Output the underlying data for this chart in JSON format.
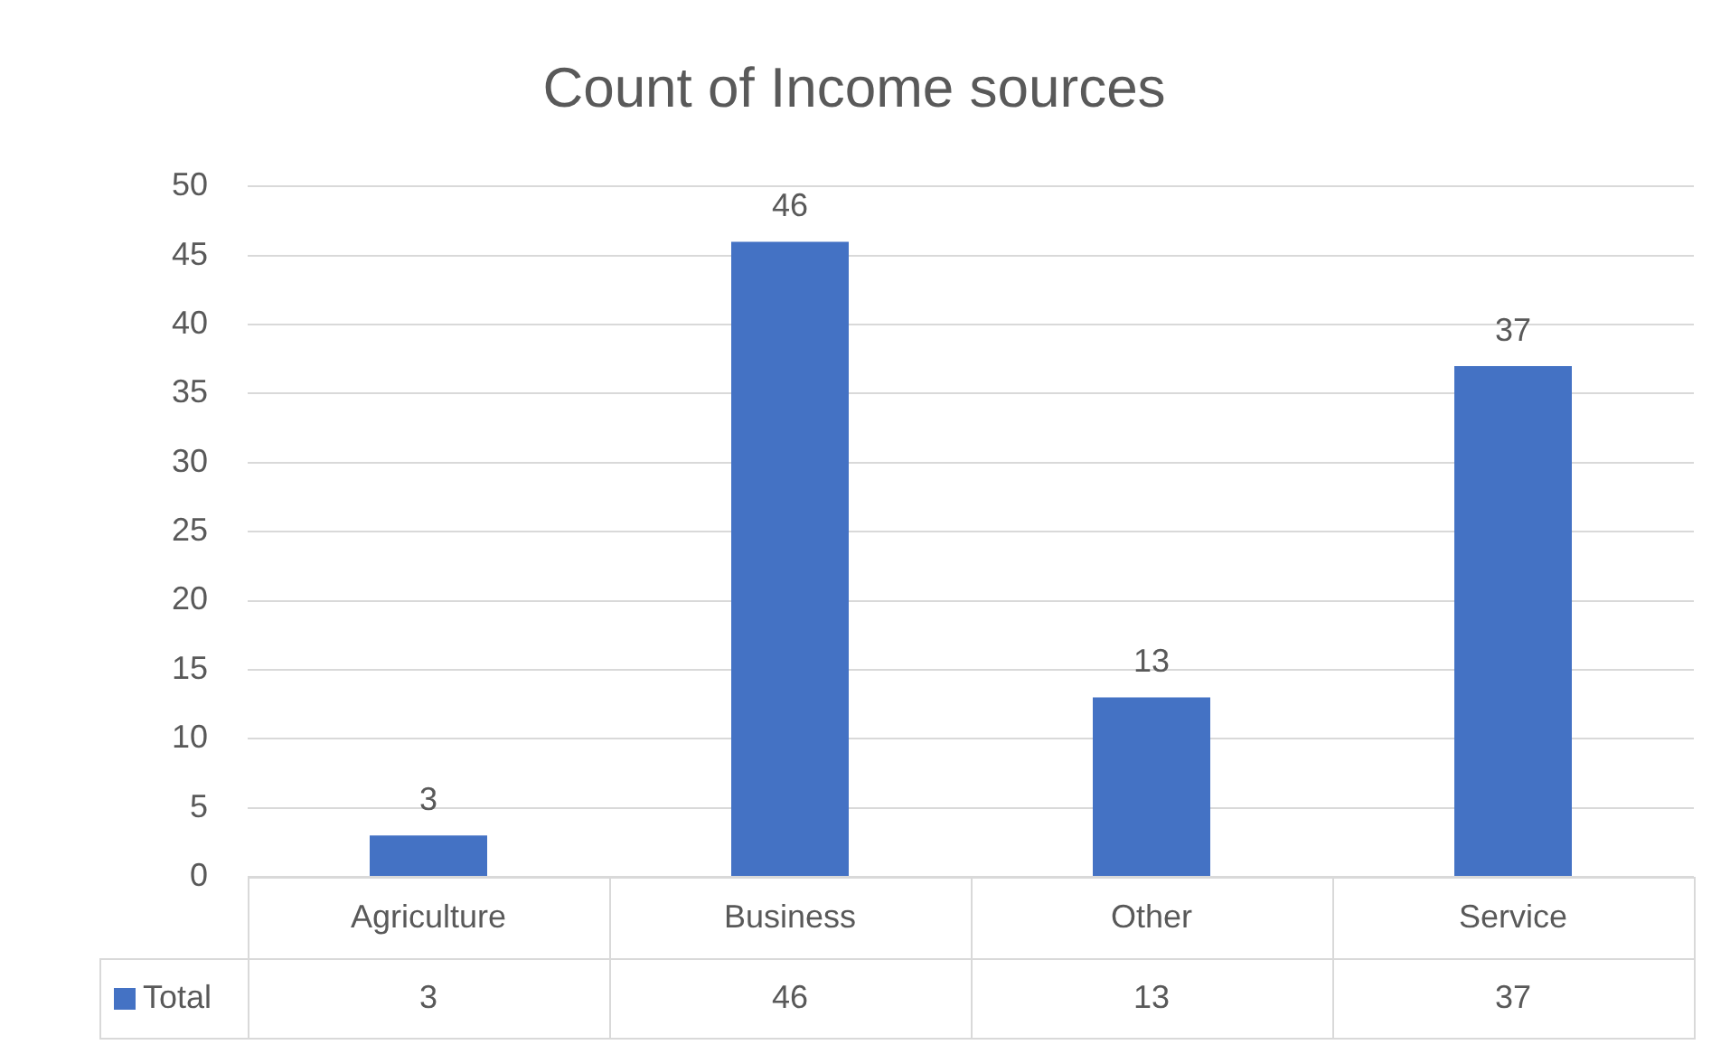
{
  "chart_data": {
    "type": "bar",
    "title": "Count of Income sources",
    "categories": [
      "Agriculture",
      "Business",
      "Other",
      "Service"
    ],
    "series": [
      {
        "name": "Total",
        "color": "#4472c4",
        "values": [
          3,
          46,
          13,
          37
        ],
        "value_labels": [
          "3",
          "46",
          "13",
          "37"
        ]
      }
    ],
    "annotations": [
      "3",
      "46",
      "13",
      "37"
    ],
    "ylim": [
      0,
      50
    ],
    "yticks": [
      0,
      5,
      10,
      15,
      20,
      25,
      30,
      35,
      40,
      45,
      50
    ],
    "grid": "y",
    "data_labels": true,
    "legend": "bottom"
  }
}
